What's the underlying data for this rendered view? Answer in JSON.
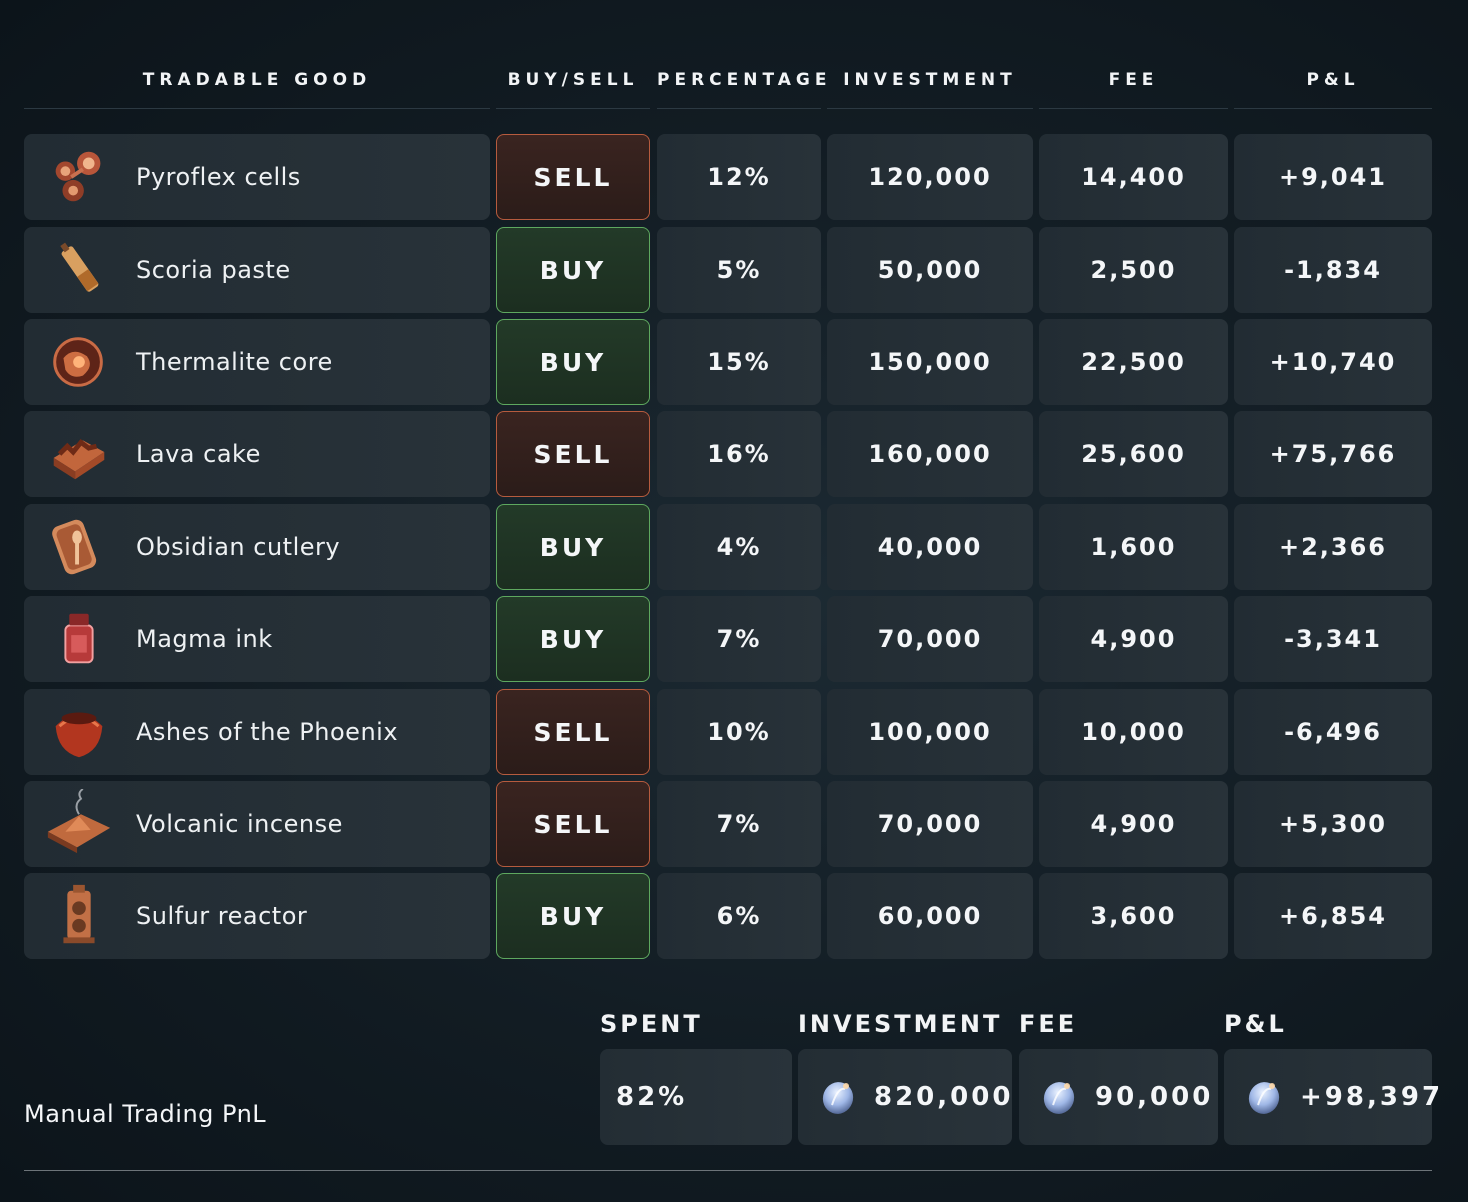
{
  "headers": {
    "good": "TRADABLE GOOD",
    "buysell": "BUY/SELL",
    "percentage": "PERCENTAGE",
    "investment": "INVESTMENT",
    "fee": "FEE",
    "pnl": "P&L"
  },
  "rows": [
    {
      "good": "Pyroflex cells",
      "icon": "pyroflex-cells-icon",
      "action": "SELL",
      "percentage": "12%",
      "investment": "120,000",
      "fee": "14,400",
      "pnl": "+9,041"
    },
    {
      "good": "Scoria paste",
      "icon": "scoria-paste-icon",
      "action": "BUY",
      "percentage": "5%",
      "investment": "50,000",
      "fee": "2,500",
      "pnl": "-1,834"
    },
    {
      "good": "Thermalite core",
      "icon": "thermalite-core-icon",
      "action": "BUY",
      "percentage": "15%",
      "investment": "150,000",
      "fee": "22,500",
      "pnl": "+10,740"
    },
    {
      "good": "Lava cake",
      "icon": "lava-cake-icon",
      "action": "SELL",
      "percentage": "16%",
      "investment": "160,000",
      "fee": "25,600",
      "pnl": "+75,766"
    },
    {
      "good": "Obsidian cutlery",
      "icon": "obsidian-cutlery-icon",
      "action": "BUY",
      "percentage": "4%",
      "investment": "40,000",
      "fee": "1,600",
      "pnl": "+2,366"
    },
    {
      "good": "Magma ink",
      "icon": "magma-ink-icon",
      "action": "BUY",
      "percentage": "7%",
      "investment": "70,000",
      "fee": "4,900",
      "pnl": "-3,341"
    },
    {
      "good": "Ashes of the Phoenix",
      "icon": "ashes-of-the-phoenix-icon",
      "action": "SELL",
      "percentage": "10%",
      "investment": "100,000",
      "fee": "10,000",
      "pnl": "-6,496"
    },
    {
      "good": "Volcanic incense",
      "icon": "volcanic-incense-icon",
      "action": "SELL",
      "percentage": "7%",
      "investment": "70,000",
      "fee": "4,900",
      "pnl": "+5,300"
    },
    {
      "good": "Sulfur reactor",
      "icon": "sulfur-reactor-icon",
      "action": "BUY",
      "percentage": "6%",
      "investment": "60,000",
      "fee": "3,600",
      "pnl": "+6,854"
    }
  ],
  "summary": {
    "spent_label": "SPENT",
    "investment_label": "INVESTMENT",
    "fee_label": "FEE",
    "pnl_label": "P&L",
    "spent": "82%",
    "investment": "820,000",
    "fee": "90,000",
    "pnl": "+98,397",
    "coin_icon": "seashell-coin-icon"
  },
  "footer": {
    "title": "Manual Trading PnL"
  },
  "colors": {
    "sell_bg": "#2f1e1b",
    "sell_border": "#b65b3e",
    "buy_bg": "#1f3324",
    "buy_border": "#5ea85f",
    "cell_bg": "#252f36"
  }
}
